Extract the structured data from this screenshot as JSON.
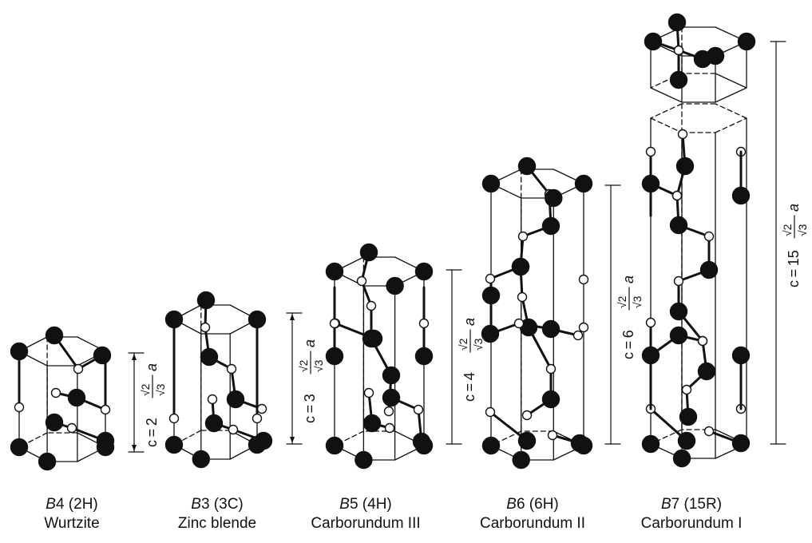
{
  "structures": [
    {
      "id": "b4",
      "code_letter": "B",
      "code_number": "4",
      "notation": "(2H)",
      "name": "Wurtzite",
      "c_label": {
        "prefix": "c = 2",
        "num": "√2",
        "den": "√3",
        "suffix": "a"
      }
    },
    {
      "id": "b3",
      "code_letter": "B",
      "code_number": "3",
      "notation": "(3C)",
      "name": "Zinc blende",
      "c_label": {
        "prefix": "c = 3",
        "num": "√2",
        "den": "√3",
        "suffix": "a"
      }
    },
    {
      "id": "b5",
      "code_letter": "B",
      "code_number": "5",
      "notation": "(4H)",
      "name": "Carborundum III",
      "c_label": {
        "prefix": "c = 4",
        "num": "√2",
        "den": "√3",
        "suffix": "a"
      }
    },
    {
      "id": "b6",
      "code_letter": "B",
      "code_number": "6",
      "notation": "(6H)",
      "name": "Carborundum II",
      "c_label": {
        "prefix": "c = 6",
        "num": "√2",
        "den": "√3",
        "suffix": "a"
      }
    },
    {
      "id": "b7",
      "code_letter": "B",
      "code_number": "7",
      "notation": "(15R)",
      "name": "Carborundum I",
      "c_label": {
        "prefix": "c = 15",
        "num": "√2",
        "den": "√3",
        "suffix": "a"
      }
    }
  ],
  "colors": {
    "line": "#111111",
    "atom_dark": "#111111",
    "atom_light": "#ffffff"
  }
}
